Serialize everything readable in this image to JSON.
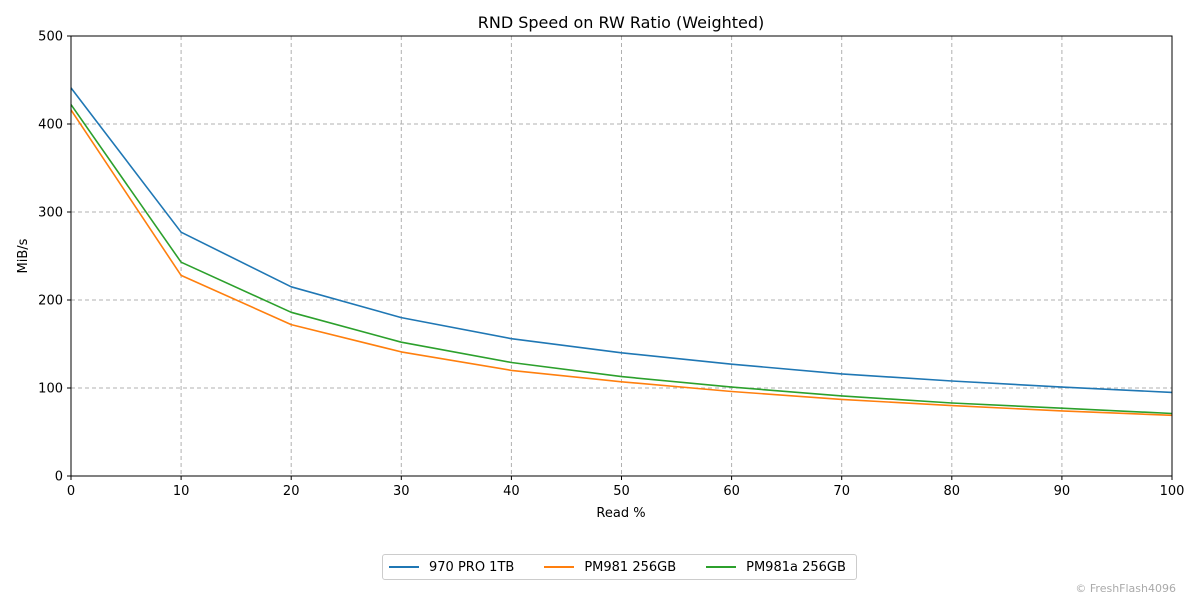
{
  "chart_data": {
    "type": "line",
    "title": "RND Speed on RW Ratio (Weighted)",
    "xlabel": "Read %",
    "ylabel": "MiB/s",
    "xlim": [
      0,
      100
    ],
    "ylim": [
      0,
      500
    ],
    "x": [
      0,
      10,
      20,
      30,
      40,
      50,
      60,
      70,
      80,
      90,
      100
    ],
    "xticks": [
      "0",
      "10",
      "20",
      "30",
      "40",
      "50",
      "60",
      "70",
      "80",
      "90",
      "100"
    ],
    "yticks": [
      "0",
      "100",
      "200",
      "300",
      "400",
      "500"
    ],
    "grid": true,
    "legend_position": "bottom-center",
    "series": [
      {
        "name": "970 PRO 1TB",
        "color": "#1f77b4",
        "values": [
          441,
          277,
          215,
          180,
          156,
          140,
          127,
          116,
          108,
          101,
          95
        ]
      },
      {
        "name": "PM981 256GB",
        "color": "#ff7f0e",
        "values": [
          416,
          228,
          172,
          141,
          120,
          107,
          96,
          87,
          80,
          74,
          69
        ]
      },
      {
        "name": "PM981a 256GB",
        "color": "#2ca02c",
        "values": [
          422,
          243,
          186,
          152,
          129,
          113,
          101,
          91,
          83,
          77,
          71
        ]
      }
    ]
  },
  "watermark": "© FreshFlash4096"
}
